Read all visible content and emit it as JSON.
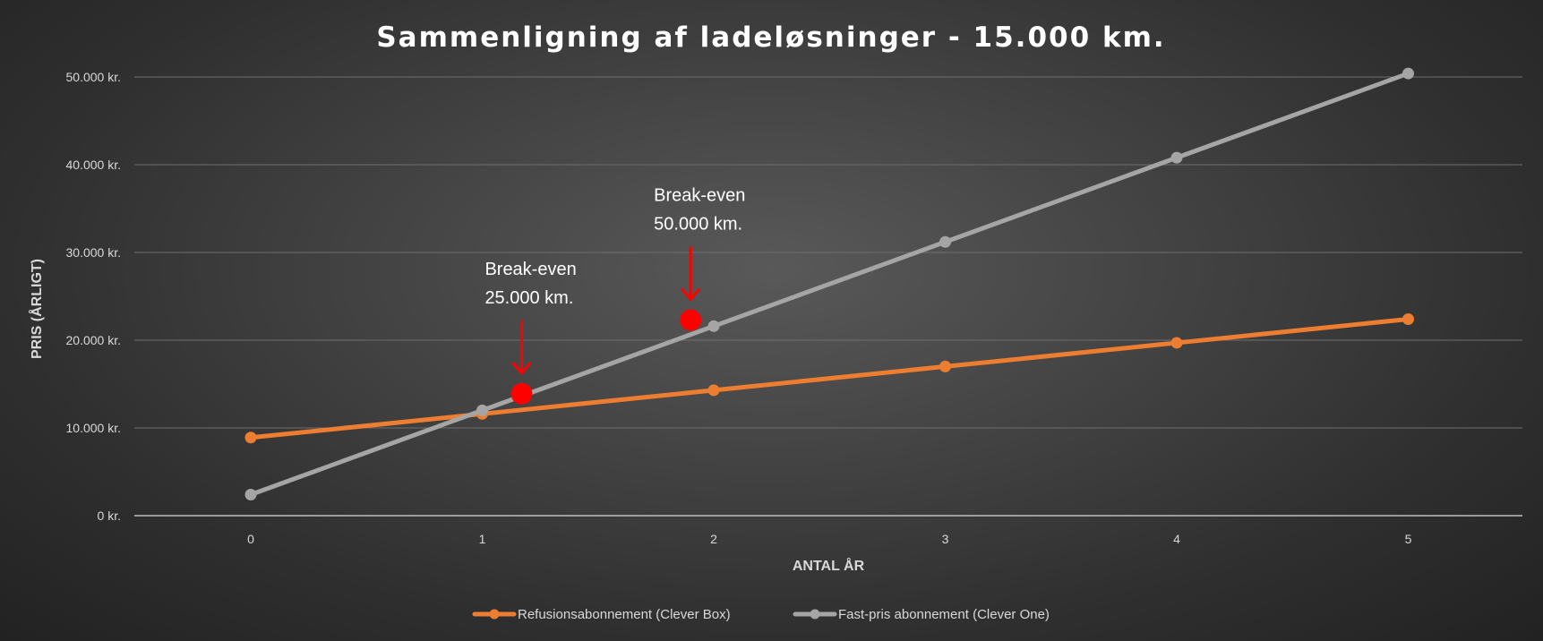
{
  "chart_data": {
    "type": "line",
    "title": "Sammenligning af ladeløsninger - 15.000 km.",
    "xlabel": "ANTAL ÅR",
    "ylabel": "PRIS (ÅRLIGT)",
    "x": [
      0,
      1,
      2,
      3,
      4,
      5
    ],
    "x_tick_labels": [
      "0",
      "1",
      "2",
      "3",
      "4",
      "5"
    ],
    "ylim": [
      0,
      50000
    ],
    "y_ticks": [
      0,
      10000,
      20000,
      30000,
      40000,
      50000
    ],
    "y_tick_labels": [
      "0 kr.",
      "10.000 kr.",
      "20.000 kr.",
      "30.000 kr.",
      "40.000 kr.",
      "50.000 kr."
    ],
    "grid": "horizontal",
    "legend_position": "bottom",
    "series": [
      {
        "name": "Refusionsabonnement (Clever Box)",
        "color": "#ed7d31",
        "values": [
          8900,
          11600,
          14300,
          17000,
          19700,
          22400
        ]
      },
      {
        "name": "Fast-pris abonnement (Clever One)",
        "color": "#a5a5a5",
        "values": [
          2400,
          12000,
          21600,
          31200,
          40800,
          50400
        ]
      }
    ],
    "annotations": [
      {
        "line1": "Break-even",
        "line2": "25.000 km.",
        "x": 1.17,
        "y": 13900,
        "color": "#ff0000"
      },
      {
        "line1": "Break-even",
        "line2": "50.000 km.",
        "x": 1.9,
        "y": 22300,
        "color": "#ff0000"
      }
    ]
  }
}
